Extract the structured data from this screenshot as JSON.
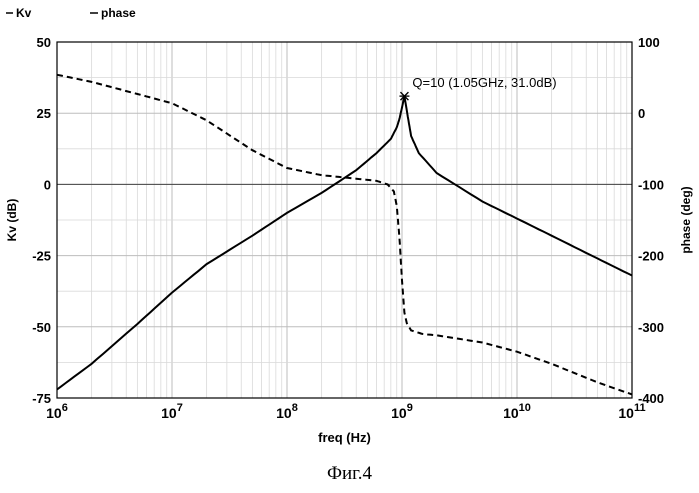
{
  "caption": "Фиг.4",
  "chart_data": {
    "type": "line",
    "legend_position": "top-left",
    "legend": [
      {
        "label": "Kv",
        "style": "solid"
      },
      {
        "label": "phase",
        "style": "dashed"
      }
    ],
    "xlabel": "freq (Hz)",
    "x_scale": "log",
    "xlim": [
      1000000,
      100000000000
    ],
    "x_ticks": [
      {
        "base": "10",
        "exp": "6",
        "value": 1000000
      },
      {
        "base": "10",
        "exp": "7",
        "value": 10000000
      },
      {
        "base": "10",
        "exp": "8",
        "value": 100000000
      },
      {
        "base": "10",
        "exp": "9",
        "value": 1000000000
      },
      {
        "base": "10",
        "exp": "10",
        "value": 10000000000
      },
      {
        "base": "10",
        "exp": "11",
        "value": 100000000000
      }
    ],
    "ylabel_left": "Kv (dB)",
    "ylim_left": [
      -75,
      50
    ],
    "y_ticks_left": [
      "50",
      "25",
      "0",
      "-25",
      "-50",
      "-75"
    ],
    "ylabel_right": "phase (deg)",
    "ylim_right": [
      -400,
      100
    ],
    "y_ticks_right": [
      "100",
      "0",
      "-100",
      "-200",
      "-300",
      "-400"
    ],
    "grid": true,
    "annotation": {
      "text": "Q=10 (1.05GHz, 31.0dB)",
      "x": 1050000000,
      "y": 31.0
    },
    "series": [
      {
        "name": "Kv",
        "axis": "left",
        "style": "solid",
        "x": [
          1000000,
          2000000,
          5000000,
          10000000,
          20000000,
          50000000,
          100000000,
          200000000,
          400000000,
          600000000,
          800000000,
          900000000,
          950000000,
          1000000000,
          1050000000,
          1100000000,
          1200000000,
          1400000000,
          2000000000,
          5000000000,
          10000000000,
          20000000000,
          50000000000,
          100000000000
        ],
        "y": [
          -72,
          -63,
          -49,
          -38,
          -28,
          -18,
          -10,
          -3,
          5,
          11,
          16,
          20,
          23,
          27,
          31,
          26,
          17,
          11,
          4,
          -6,
          -12,
          -18,
          -26,
          -32
        ]
      },
      {
        "name": "phase",
        "axis": "right",
        "style": "dashed",
        "x": [
          1000000,
          2000000,
          5000000,
          10000000,
          20000000,
          50000000,
          100000000,
          200000000,
          400000000,
          600000000,
          750000000,
          850000000,
          900000000,
          950000000,
          1000000000,
          1050000000,
          1100000000,
          1200000000,
          1500000000,
          2000000000,
          5000000000,
          10000000000,
          20000000000,
          50000000000,
          100000000000
        ],
        "y": [
          54,
          44,
          27,
          14,
          -10,
          -52,
          -77,
          -87,
          -92,
          -95,
          -100,
          -110,
          -130,
          -175,
          -235,
          -280,
          -295,
          -305,
          -310,
          -312,
          -322,
          -335,
          -352,
          -378,
          -395
        ]
      }
    ]
  }
}
